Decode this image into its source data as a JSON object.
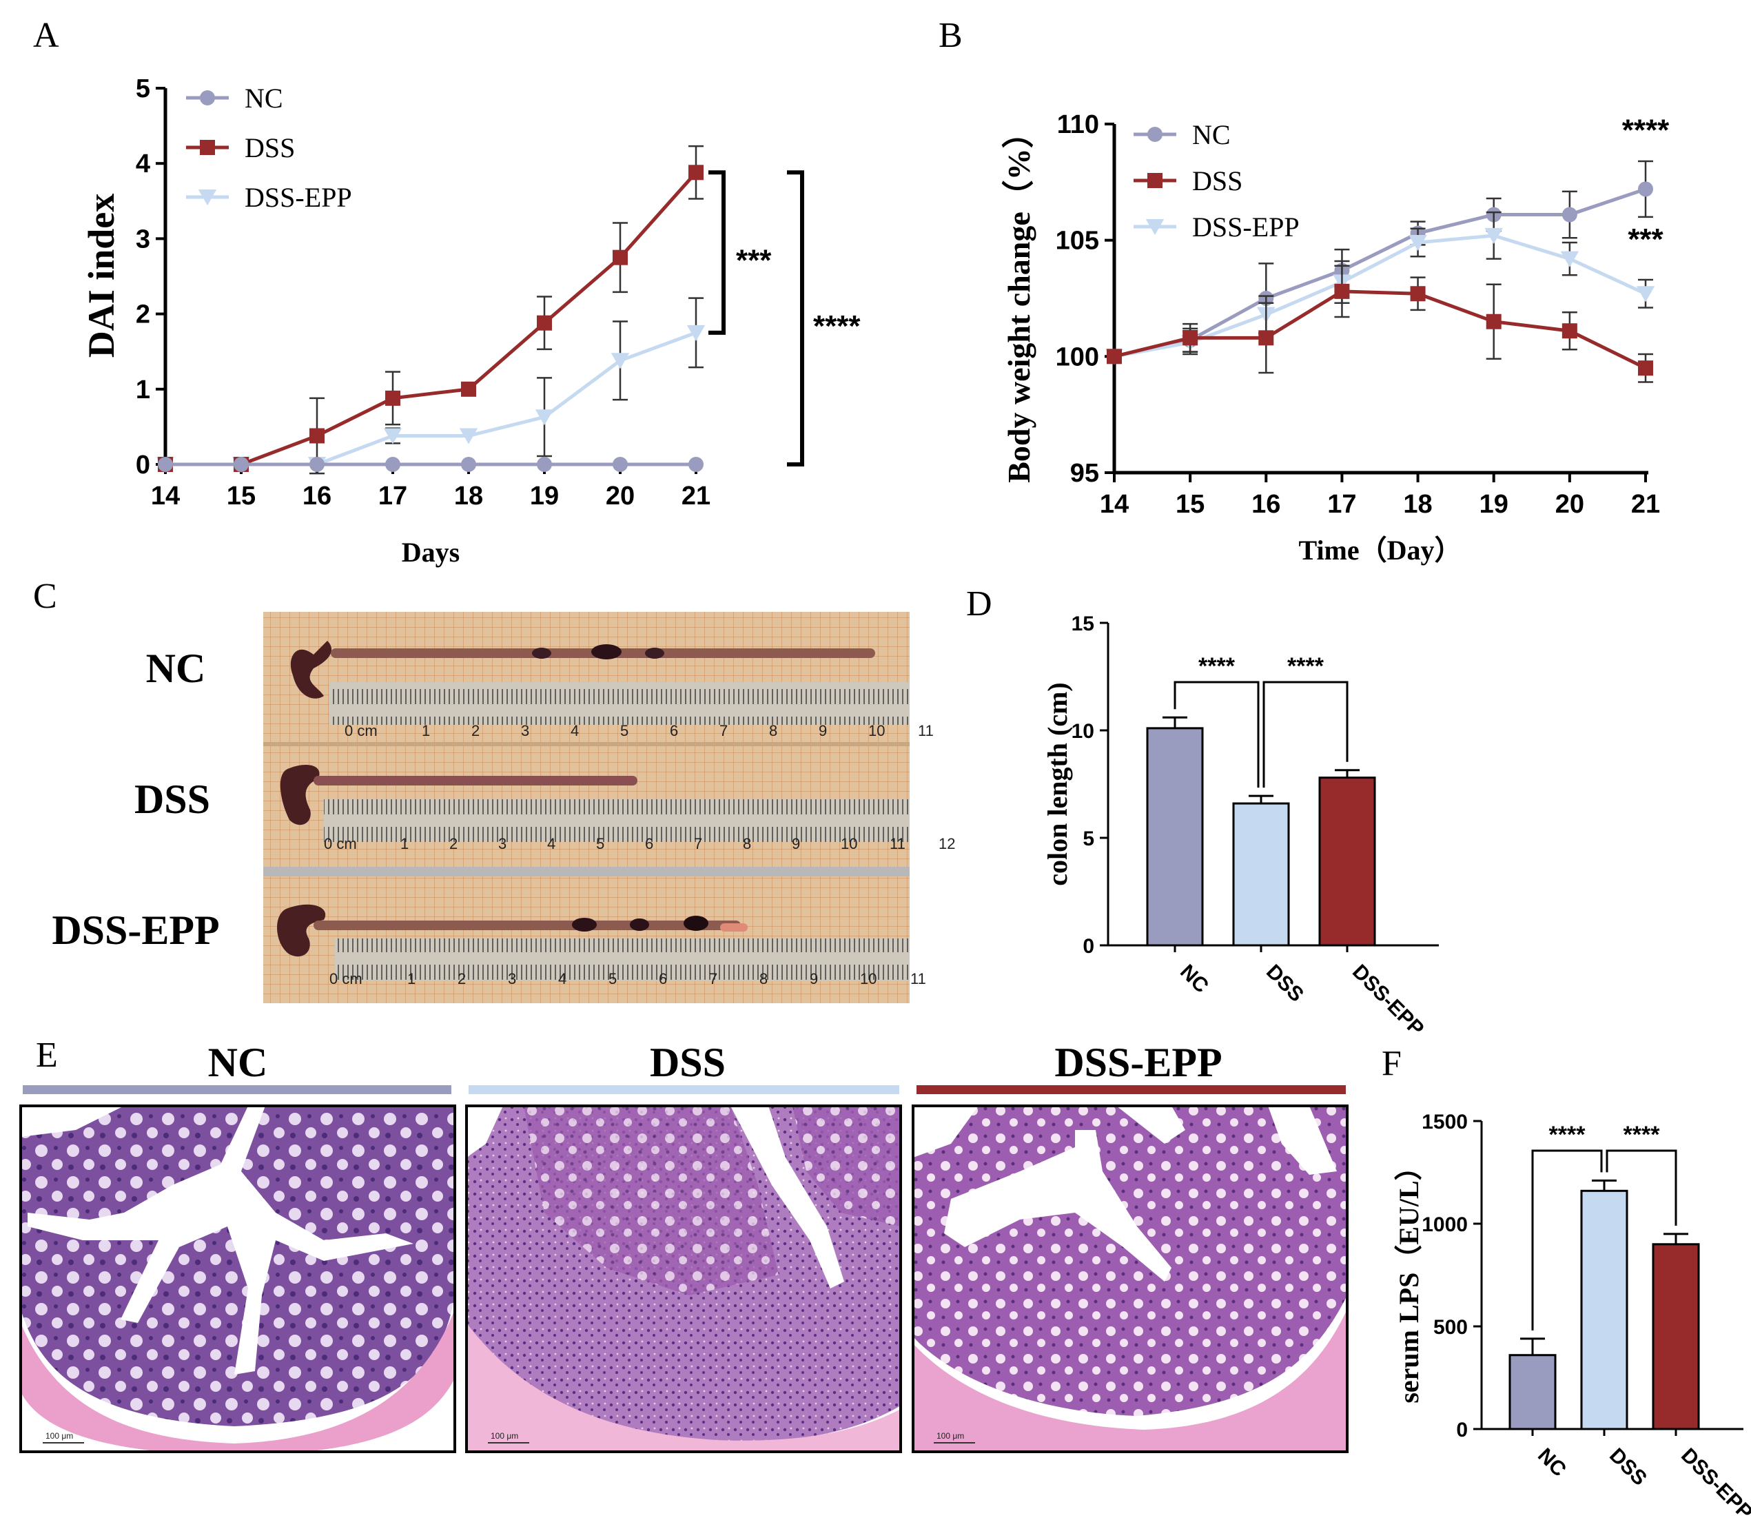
{
  "colors": {
    "nc": "#9a9cbf",
    "dss": "#972a2b",
    "dss_epp": "#c5d9f1",
    "tissue_purple": "#8a5aa8",
    "tissue_pink": "#e9a3cc",
    "muscle": "#f0b7d8",
    "lumen": "#ffffff",
    "ruler_bg": "#d9b38a",
    "colon": "#6b3a3a"
  },
  "panel_labels": {
    "a": "A",
    "b": "B",
    "c": "C",
    "d": "D",
    "e": "E",
    "f": "F"
  },
  "chart_data": [
    {
      "id": "A",
      "type": "line",
      "title": "",
      "xlabel": "Days",
      "ylabel": "DAI index",
      "x": [
        14,
        15,
        16,
        17,
        18,
        19,
        20,
        21
      ],
      "x_ticks": [
        "14",
        "15",
        "16",
        "17",
        "18",
        "19",
        "20",
        "21"
      ],
      "y_ticks": [
        "0",
        "1",
        "2",
        "3",
        "4",
        "5"
      ],
      "xlim": [
        14,
        21
      ],
      "ylim": [
        0,
        5
      ],
      "legend": [
        "NC",
        "DSS",
        "DSS-EPP"
      ],
      "legend_position": "top-left",
      "series": [
        {
          "name": "NC",
          "marker": "circle",
          "values": [
            0,
            0,
            0,
            0,
            0,
            0,
            0,
            0
          ],
          "errors": [
            0,
            0,
            0,
            0,
            0,
            0,
            0,
            0
          ]
        },
        {
          "name": "DSS",
          "marker": "square",
          "values": [
            0,
            0,
            0.38,
            0.88,
            1.0,
            1.88,
            2.75,
            3.88
          ],
          "errors": [
            0,
            0,
            0.5,
            0.35,
            0,
            0.35,
            0.46,
            0.35
          ]
        },
        {
          "name": "DSS-EPP",
          "marker": "triangle-down",
          "values": [
            0,
            0,
            0,
            0.38,
            0.38,
            0.63,
            1.38,
            1.75
          ],
          "errors": [
            0,
            0,
            0,
            0.1,
            0,
            0.52,
            0.52,
            0.46
          ]
        }
      ],
      "brackets": [
        {
          "label": "***",
          "from": 3.88,
          "to": 1.75
        },
        {
          "label": "****",
          "from": 3.88,
          "to": 0
        }
      ]
    },
    {
      "id": "B",
      "type": "line",
      "title": "",
      "xlabel": "Time（Day）",
      "ylabel": "Body weight change（%）",
      "x": [
        14,
        15,
        16,
        17,
        18,
        19,
        20,
        21
      ],
      "x_ticks": [
        "14",
        "15",
        "16",
        "17",
        "18",
        "19",
        "20",
        "21"
      ],
      "y_ticks": [
        "95",
        "100",
        "105",
        "110"
      ],
      "xlim": [
        14,
        21
      ],
      "ylim": [
        95,
        110
      ],
      "legend": [
        "NC",
        "DSS",
        "DSS-EPP"
      ],
      "legend_position": "top-left",
      "series": [
        {
          "name": "NC",
          "marker": "circle",
          "values": [
            100,
            100.7,
            102.5,
            103.7,
            105.3,
            106.1,
            106.1,
            107.2
          ],
          "errors": [
            0,
            0.5,
            1.5,
            0.9,
            0.5,
            0.7,
            1.0,
            1.2
          ]
        },
        {
          "name": "DSS",
          "marker": "square",
          "values": [
            100,
            100.8,
            100.8,
            102.8,
            102.7,
            101.5,
            101.1,
            99.5
          ],
          "errors": [
            0,
            0.6,
            1.5,
            1.1,
            0.7,
            1.6,
            0.8,
            0.6
          ]
        },
        {
          "name": "DSS-EPP",
          "marker": "triangle-down",
          "values": [
            100,
            100.6,
            101.8,
            103.2,
            104.9,
            105.2,
            104.2,
            102.7
          ],
          "errors": [
            0,
            0.5,
            0.8,
            0.9,
            0.6,
            1.0,
            0.7,
            0.6
          ]
        }
      ],
      "annotations": [
        {
          "text": "****",
          "x": 21,
          "y": 109.3
        },
        {
          "text": "***",
          "x": 21,
          "y": 104.6
        }
      ]
    },
    {
      "id": "D",
      "type": "bar",
      "title": "",
      "xlabel": "",
      "ylabel": "colon length (cm)",
      "categories": [
        "NC",
        "DSS",
        "DSS-EPP"
      ],
      "values": [
        10.1,
        6.6,
        7.8
      ],
      "errors": [
        0.5,
        0.35,
        0.35
      ],
      "y_ticks": [
        "0",
        "5",
        "10",
        "15"
      ],
      "ylim": [
        0,
        15
      ],
      "comparisons": [
        {
          "label": "****",
          "a": 0,
          "b": 1
        },
        {
          "label": "****",
          "a": 1,
          "b": 2
        }
      ]
    },
    {
      "id": "F",
      "type": "bar",
      "title": "",
      "xlabel": "",
      "ylabel": "serum LPS（EU/L）",
      "categories": [
        "NC",
        "DSS",
        "DSS-EPP"
      ],
      "values": [
        360,
        1160,
        900
      ],
      "errors": [
        80,
        50,
        50
      ],
      "y_ticks": [
        "0",
        "500",
        "1000",
        "1500"
      ],
      "ylim": [
        0,
        1500
      ],
      "comparisons": [
        {
          "label": "****",
          "a": 0,
          "b": 1
        },
        {
          "label": "****",
          "a": 1,
          "b": 2
        }
      ]
    }
  ],
  "photo_c": {
    "groups": [
      "NC",
      "DSS",
      "DSS-EPP"
    ],
    "unit": "cm",
    "ruler_numbers": [
      "0 cm",
      "1",
      "2",
      "3",
      "4",
      "5",
      "6",
      "7",
      "8",
      "9",
      "10",
      "11",
      "12"
    ]
  },
  "histology_e": {
    "groups": [
      "NC",
      "DSS",
      "DSS-EPP"
    ],
    "scale_bar": "100 μm"
  }
}
